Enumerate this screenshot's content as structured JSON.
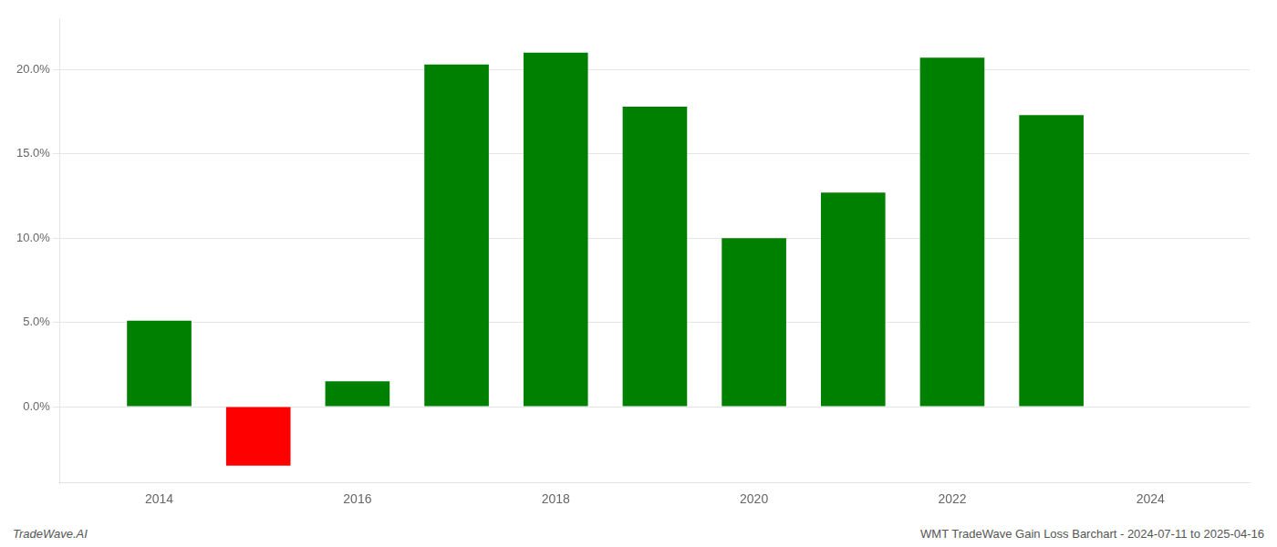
{
  "chart_data": {
    "type": "bar",
    "x": [
      2014,
      2015,
      2016,
      2017,
      2018,
      2019,
      2020,
      2021,
      2022,
      2023
    ],
    "values": [
      5.1,
      -3.5,
      1.5,
      20.3,
      21.0,
      17.8,
      10.0,
      12.7,
      20.7,
      17.3
    ],
    "colors": [
      "#008000",
      "#ff0000",
      "#008000",
      "#008000",
      "#008000",
      "#008000",
      "#008000",
      "#008000",
      "#008000",
      "#008000"
    ],
    "xlim": [
      2013,
      2025
    ],
    "xticks": [
      2014,
      2016,
      2018,
      2020,
      2022,
      2024
    ],
    "ylim": [
      -4.5,
      23.0
    ],
    "yticks": [
      {
        "value": 0,
        "label": "0.0%"
      },
      {
        "value": 5,
        "label": "5.0%"
      },
      {
        "value": 10,
        "label": "10.0%"
      },
      {
        "value": 15,
        "label": "15.0%"
      },
      {
        "value": 20,
        "label": "20.0%"
      }
    ],
    "grid": true,
    "annotations": [
      "TradeWave.AI",
      "WMT TradeWave Gain Loss Barchart - 2024-07-11 to 2025-04-16"
    ]
  }
}
